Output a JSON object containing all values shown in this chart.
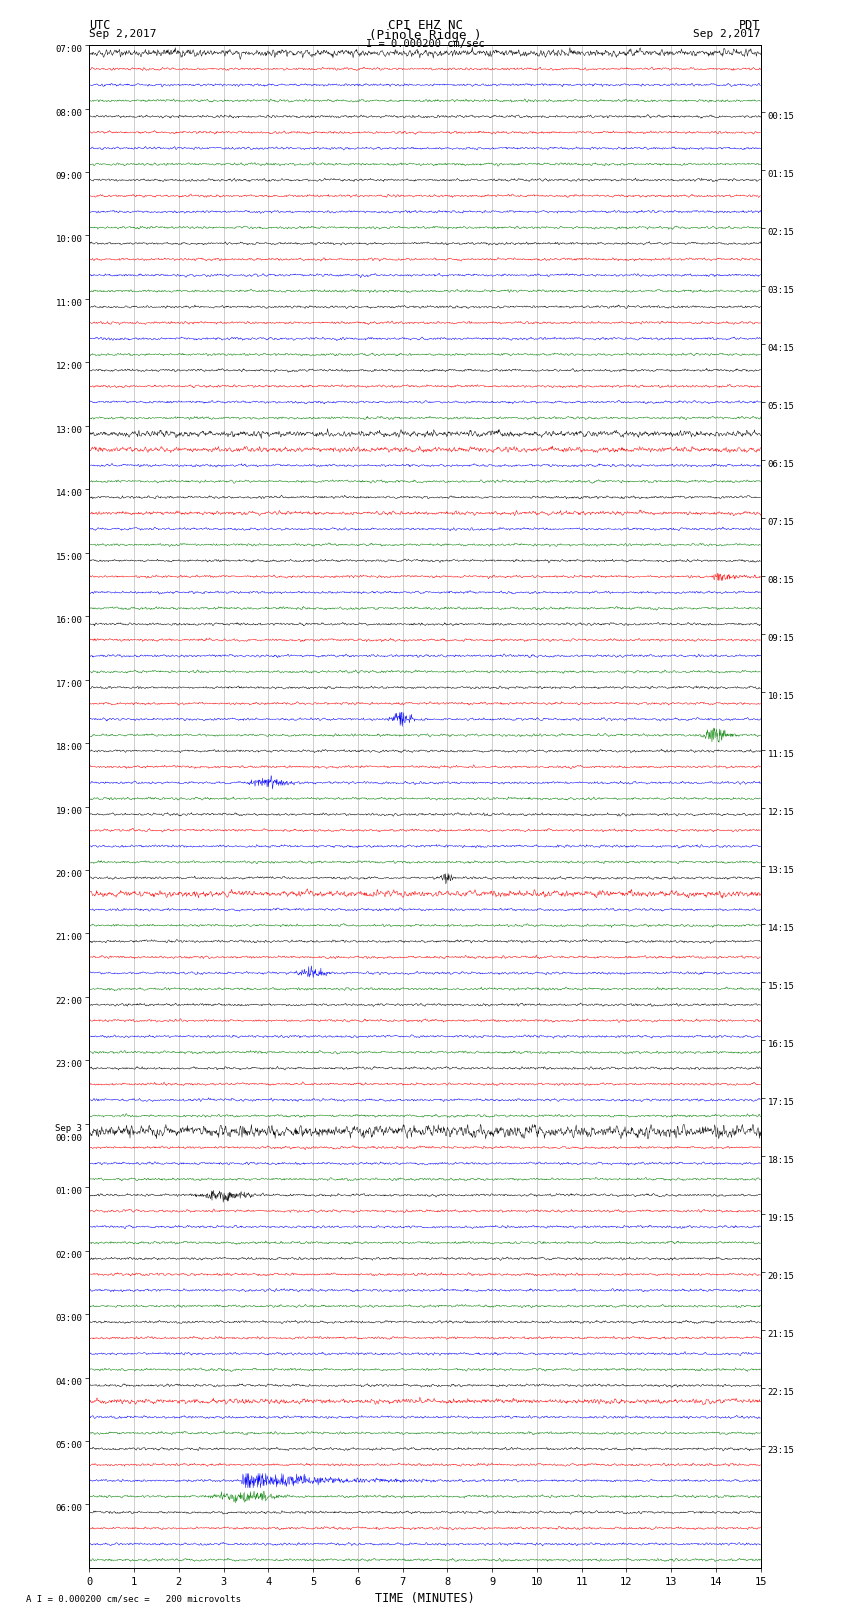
{
  "title_line1": "CPI EHZ NC",
  "title_line2": "(Pinole Ridge )",
  "scale_label": "I = 0.000200 cm/sec",
  "utc_label": "UTC",
  "pdt_label": "PDT",
  "date_left": "Sep 2,2017",
  "date_right": "Sep 2,2017",
  "xlabel": "TIME (MINUTES)",
  "footer": "A I = 0.000200 cm/sec =   200 microvolts",
  "bg_color": "#ffffff",
  "trace_colors": [
    "black",
    "red",
    "blue",
    "green"
  ],
  "utc_hour_labels": [
    "07:00",
    "08:00",
    "09:00",
    "10:00",
    "11:00",
    "12:00",
    "13:00",
    "14:00",
    "15:00",
    "16:00",
    "17:00",
    "18:00",
    "19:00",
    "20:00",
    "21:00",
    "22:00",
    "23:00",
    "Sep 3\n00:00",
    "01:00",
    "02:00",
    "03:00",
    "04:00",
    "05:00",
    "06:00"
  ],
  "pdt_hour_labels": [
    "00:15",
    "01:15",
    "02:15",
    "03:15",
    "04:15",
    "05:15",
    "06:15",
    "07:15",
    "08:15",
    "09:15",
    "10:15",
    "11:15",
    "12:15",
    "13:15",
    "14:15",
    "15:15",
    "16:15",
    "17:15",
    "18:15",
    "19:15",
    "20:15",
    "21:15",
    "22:15",
    "23:15"
  ],
  "n_hours": 24,
  "n_cols": 4,
  "xmin": 0,
  "xmax": 15,
  "xticks": [
    0,
    1,
    2,
    3,
    4,
    5,
    6,
    7,
    8,
    9,
    10,
    11,
    12,
    13,
    14,
    15
  ],
  "noise_amplitude": 0.06,
  "vgrid_color": "#aaaaaa",
  "vgrid_lw": 0.5
}
